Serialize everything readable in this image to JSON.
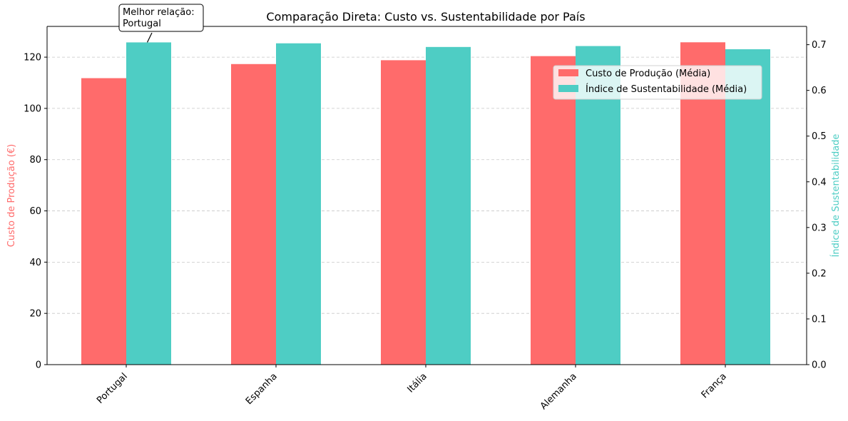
{
  "chart_data": {
    "type": "bar",
    "title": "Comparação Direta: Custo vs. Sustentabilidade por País",
    "categories": [
      "Portugal",
      "Espanha",
      "Itália",
      "Alemanha",
      "França"
    ],
    "series": [
      {
        "name": "Custo de Produção (Média)",
        "axis": "left",
        "color": "#ff6b6b",
        "values": [
          111.8,
          117.3,
          118.8,
          120.4,
          125.8
        ]
      },
      {
        "name": "Índice de Sustentabilidade (Média)",
        "axis": "right",
        "color": "#4ecdc4",
        "values": [
          0.705,
          0.703,
          0.695,
          0.697,
          0.69
        ]
      }
    ],
    "ylabel_left": "Custo de Produção (€)",
    "ylabel_right": "Índice de Sustentabilidade",
    "ylim_left": [
      0,
      132
    ],
    "ylim_right": [
      0,
      0.74
    ],
    "yticks_left": [
      0,
      20,
      40,
      60,
      80,
      100,
      120
    ],
    "yticks_right": [
      0.0,
      0.1,
      0.2,
      0.3,
      0.4,
      0.5,
      0.6,
      0.7
    ],
    "grid": "horizontal dashed",
    "legend_position": "upper-right",
    "annotation": {
      "text_line1": "Melhor relação:",
      "text_line2": "Portugal",
      "target_category": "Portugal",
      "target_series": 1
    }
  }
}
